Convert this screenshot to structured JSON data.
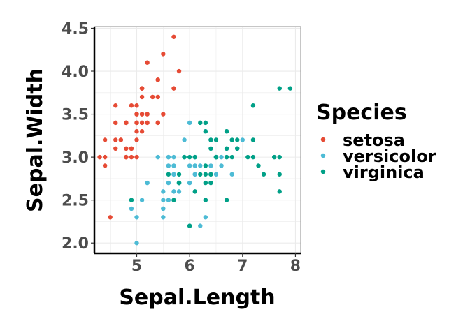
{
  "chart_data": {
    "type": "scatter",
    "xlabel": "Sepal.Length",
    "ylabel": "Sepal.Width",
    "xlim": [
      4.2,
      8.1
    ],
    "ylim": [
      1.88,
      4.52
    ],
    "x_ticks": [
      5,
      6,
      7,
      8
    ],
    "x_tick_labels": [
      "5",
      "6",
      "7",
      "8"
    ],
    "y_ticks": [
      2.0,
      2.5,
      3.0,
      3.5,
      4.0,
      4.5
    ],
    "y_tick_labels": [
      "2.0",
      "2.5",
      "3.0",
      "3.5",
      "4.0",
      "4.5"
    ],
    "grid": true,
    "legend": {
      "title": "Species",
      "position": "right"
    },
    "series": [
      {
        "name": "setosa",
        "color": "#E64B35",
        "points": [
          [
            5.1,
            3.5
          ],
          [
            4.9,
            3.0
          ],
          [
            4.7,
            3.2
          ],
          [
            4.6,
            3.1
          ],
          [
            5.0,
            3.6
          ],
          [
            5.4,
            3.9
          ],
          [
            4.6,
            3.4
          ],
          [
            5.0,
            3.4
          ],
          [
            4.4,
            2.9
          ],
          [
            4.9,
            3.1
          ],
          [
            5.4,
            3.7
          ],
          [
            4.8,
            3.4
          ],
          [
            4.8,
            3.0
          ],
          [
            4.3,
            3.0
          ],
          [
            5.8,
            4.0
          ],
          [
            5.7,
            4.4
          ],
          [
            5.4,
            3.9
          ],
          [
            5.1,
            3.5
          ],
          [
            5.7,
            3.8
          ],
          [
            5.1,
            3.8
          ],
          [
            5.4,
            3.4
          ],
          [
            5.1,
            3.7
          ],
          [
            4.6,
            3.6
          ],
          [
            5.1,
            3.3
          ],
          [
            4.8,
            3.4
          ],
          [
            5.0,
            3.0
          ],
          [
            5.0,
            3.4
          ],
          [
            5.2,
            3.5
          ],
          [
            5.2,
            3.4
          ],
          [
            4.7,
            3.2
          ],
          [
            4.8,
            3.1
          ],
          [
            5.4,
            3.4
          ],
          [
            5.2,
            4.1
          ],
          [
            5.5,
            4.2
          ],
          [
            4.9,
            3.1
          ],
          [
            5.0,
            3.2
          ],
          [
            5.5,
            3.5
          ],
          [
            4.9,
            3.6
          ],
          [
            4.4,
            3.0
          ],
          [
            5.1,
            3.4
          ],
          [
            5.0,
            3.5
          ],
          [
            4.5,
            2.3
          ],
          [
            4.4,
            3.2
          ],
          [
            5.0,
            3.5
          ],
          [
            5.1,
            3.8
          ],
          [
            4.8,
            3.0
          ],
          [
            5.1,
            3.8
          ],
          [
            4.6,
            3.2
          ],
          [
            5.3,
            3.7
          ],
          [
            5.0,
            3.3
          ]
        ]
      },
      {
        "name": "versicolor",
        "color": "#4DBBD5",
        "points": [
          [
            7.0,
            3.2
          ],
          [
            6.4,
            3.2
          ],
          [
            6.9,
            3.1
          ],
          [
            5.5,
            2.3
          ],
          [
            6.5,
            2.8
          ],
          [
            5.7,
            2.8
          ],
          [
            6.3,
            3.3
          ],
          [
            4.9,
            2.4
          ],
          [
            6.6,
            2.9
          ],
          [
            5.2,
            2.7
          ],
          [
            5.0,
            2.0
          ],
          [
            5.9,
            3.0
          ],
          [
            6.0,
            2.2
          ],
          [
            6.1,
            2.9
          ],
          [
            5.6,
            2.9
          ],
          [
            6.7,
            3.1
          ],
          [
            5.6,
            3.0
          ],
          [
            5.8,
            2.7
          ],
          [
            6.2,
            2.2
          ],
          [
            5.6,
            2.5
          ],
          [
            5.9,
            3.2
          ],
          [
            6.1,
            2.8
          ],
          [
            6.3,
            2.5
          ],
          [
            6.1,
            2.8
          ],
          [
            6.4,
            2.9
          ],
          [
            6.6,
            3.0
          ],
          [
            6.8,
            2.8
          ],
          [
            6.7,
            3.0
          ],
          [
            6.0,
            2.9
          ],
          [
            5.7,
            2.6
          ],
          [
            5.5,
            2.4
          ],
          [
            5.5,
            2.4
          ],
          [
            5.8,
            2.7
          ],
          [
            6.0,
            2.7
          ],
          [
            5.4,
            3.0
          ],
          [
            6.0,
            3.4
          ],
          [
            6.7,
            3.1
          ],
          [
            6.3,
            2.3
          ],
          [
            5.6,
            3.0
          ],
          [
            5.5,
            2.5
          ],
          [
            5.5,
            2.6
          ],
          [
            6.1,
            3.0
          ],
          [
            5.8,
            2.6
          ],
          [
            5.0,
            2.3
          ],
          [
            5.6,
            2.7
          ],
          [
            5.7,
            3.0
          ],
          [
            5.7,
            2.9
          ],
          [
            6.2,
            2.9
          ],
          [
            5.1,
            2.5
          ],
          [
            5.7,
            2.8
          ]
        ]
      },
      {
        "name": "virginica",
        "color": "#00A087",
        "points": [
          [
            6.3,
            3.3
          ],
          [
            5.8,
            2.7
          ],
          [
            7.1,
            3.0
          ],
          [
            6.3,
            2.9
          ],
          [
            6.5,
            3.0
          ],
          [
            7.6,
            3.0
          ],
          [
            4.9,
            2.5
          ],
          [
            7.3,
            2.9
          ],
          [
            6.7,
            2.5
          ],
          [
            7.2,
            3.6
          ],
          [
            6.5,
            3.2
          ],
          [
            6.4,
            2.7
          ],
          [
            6.8,
            3.0
          ],
          [
            5.7,
            2.5
          ],
          [
            5.8,
            2.8
          ],
          [
            6.4,
            3.2
          ],
          [
            6.5,
            3.0
          ],
          [
            7.7,
            3.8
          ],
          [
            7.7,
            2.6
          ],
          [
            6.0,
            2.2
          ],
          [
            6.9,
            3.2
          ],
          [
            5.6,
            2.8
          ],
          [
            7.7,
            2.8
          ],
          [
            6.3,
            2.7
          ],
          [
            6.7,
            3.3
          ],
          [
            7.2,
            3.2
          ],
          [
            6.2,
            2.8
          ],
          [
            6.1,
            3.0
          ],
          [
            6.4,
            2.8
          ],
          [
            7.2,
            3.0
          ],
          [
            7.4,
            2.8
          ],
          [
            7.9,
            3.8
          ],
          [
            6.4,
            2.8
          ],
          [
            6.3,
            2.8
          ],
          [
            6.1,
            2.6
          ],
          [
            7.7,
            3.0
          ],
          [
            6.3,
            3.4
          ],
          [
            6.4,
            3.1
          ],
          [
            6.0,
            3.0
          ],
          [
            6.9,
            3.1
          ],
          [
            6.7,
            3.1
          ],
          [
            6.9,
            3.1
          ],
          [
            5.8,
            2.7
          ],
          [
            6.8,
            3.2
          ],
          [
            6.7,
            3.3
          ],
          [
            6.7,
            3.0
          ],
          [
            6.3,
            2.5
          ],
          [
            6.5,
            3.0
          ],
          [
            6.2,
            3.4
          ],
          [
            5.9,
            3.0
          ]
        ]
      }
    ]
  }
}
